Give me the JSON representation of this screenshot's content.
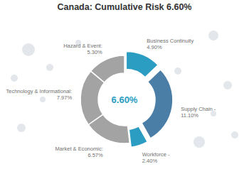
{
  "chart_data": {
    "type": "pie",
    "title": "Canada: Cumulative Risk 6.60%",
    "center_label": "6.60%",
    "categories": [
      "Business Continuity",
      "Supply Chain -",
      "Workforce -",
      "Market & Economic:",
      "Technology & Informational:",
      "Hazard & Event:"
    ],
    "values": [
      4.9,
      11.1,
      2.4,
      6.57,
      7.97,
      5.3
    ],
    "value_labels": [
      "4.90%",
      "11.10%",
      "2.40%",
      "6.57%",
      "7.97%",
      "5.30%"
    ],
    "colors": [
      "#2b9cc2",
      "#4a7ea6",
      "#2b9cc2",
      "#a3a3a3",
      "#a3a3a3",
      "#a3a3a3"
    ],
    "data_labels": true
  }
}
